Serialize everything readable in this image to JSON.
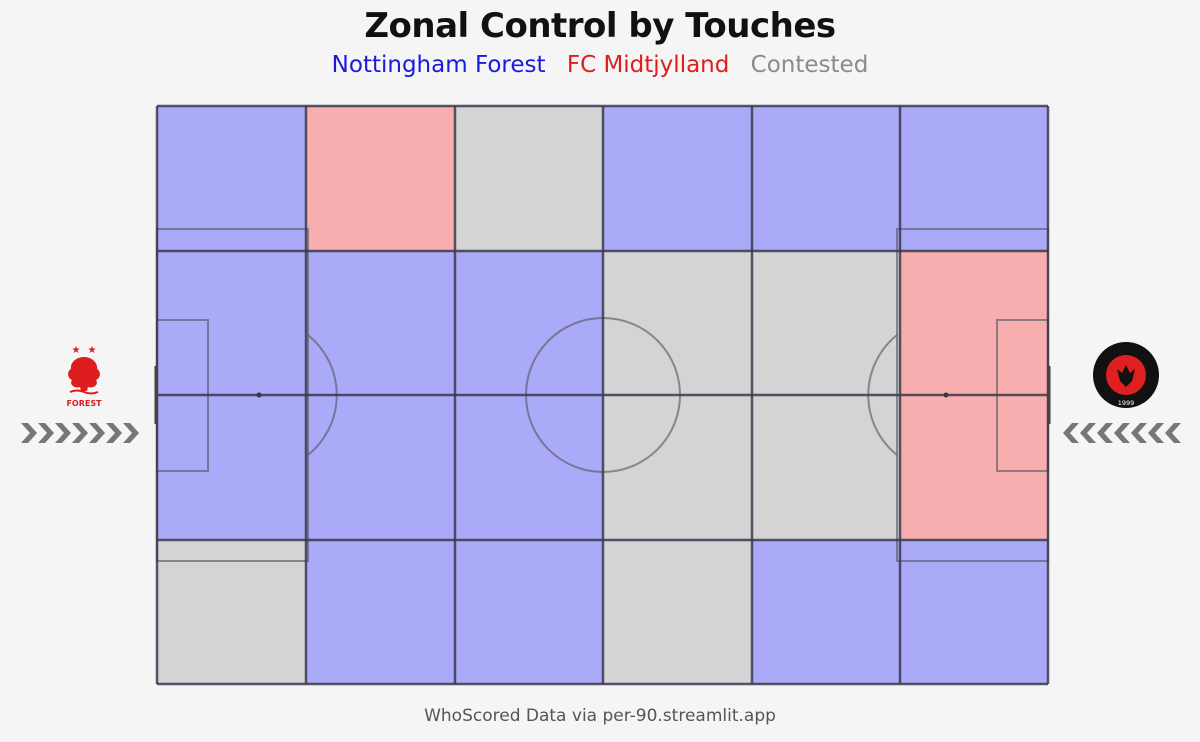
{
  "chart_data": {
    "type": "heatmap",
    "title": "Zonal Control by Touches",
    "legend": [
      {
        "label": "Nottingham Forest",
        "color": "#1a1adc",
        "fill": "#aaaaf8"
      },
      {
        "label": "FC Midtjylland",
        "color": "#e01d1d",
        "fill": "#f8aeae"
      },
      {
        "label": "Contested",
        "color": "#8a8a8a",
        "fill": "#d4d4d4"
      }
    ],
    "grid_columns": 6,
    "grid_rows_description": "row 0 = top flank, rows 1-2 = central split at halfway line, row 3 = bottom flank",
    "zones": [
      [
        "Nottingham Forest",
        "FC Midtjylland",
        "Contested",
        "Nottingham Forest",
        "Nottingham Forest",
        "Nottingham Forest"
      ],
      [
        "Nottingham Forest",
        "Nottingham Forest",
        "Nottingham Forest",
        "Contested",
        "Contested",
        "FC Midtjylland"
      ],
      [
        "Nottingham Forest",
        "Nottingham Forest",
        "Nottingham Forest",
        "Contested",
        "Contested",
        "FC Midtjylland"
      ],
      [
        "Contested",
        "Nottingham Forest",
        "Nottingham Forest",
        "Contested",
        "Nottingham Forest",
        "Nottingham Forest"
      ]
    ],
    "left_team": "Nottingham Forest",
    "right_team": "FC Midtjylland",
    "left_crest_text": "FOREST",
    "right_crest_text": "FC MIDTJYLLAND",
    "right_crest_year": "1999"
  },
  "footer": "WhoScored Data via per-90.streamlit.app",
  "icons": {
    "left_arrows": "attack-direction-right-icon",
    "right_arrows": "attack-direction-left-icon"
  }
}
